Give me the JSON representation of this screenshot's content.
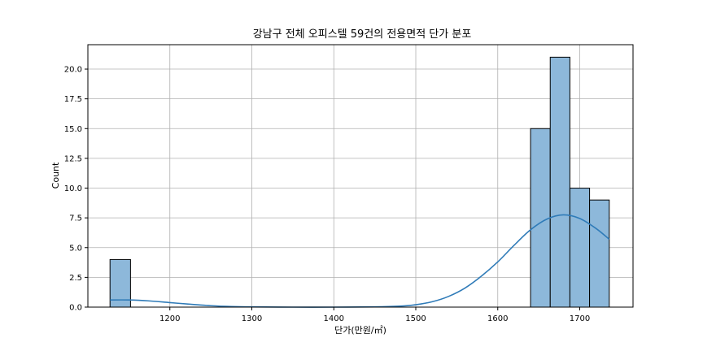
{
  "chart_data": {
    "type": "bar",
    "title": "강남구 전체 오피스텔 59건의 전용면적 단가 분포",
    "xlabel": "단가(만원/㎡)",
    "ylabel": "Count",
    "xlim": [
      1100,
      1765
    ],
    "ylim": [
      0,
      22.05
    ],
    "xticks": [
      1200,
      1300,
      1400,
      1500,
      1600,
      1700
    ],
    "yticks": [
      0.0,
      2.5,
      5.0,
      7.5,
      10.0,
      12.5,
      15.0,
      17.5,
      20.0
    ],
    "ytick_labels": [
      "0.0",
      "2.5",
      "5.0",
      "7.5",
      "10.0",
      "12.5",
      "15.0",
      "17.5",
      "20.0"
    ],
    "grid": true,
    "bins": [
      {
        "x0": 1127,
        "x1": 1152,
        "count": 4
      },
      {
        "x0": 1640,
        "x1": 1664,
        "count": 15
      },
      {
        "x0": 1664,
        "x1": 1688,
        "count": 21
      },
      {
        "x0": 1688,
        "x1": 1712,
        "count": 10
      },
      {
        "x0": 1712,
        "x1": 1736,
        "count": 9
      }
    ],
    "kde": {
      "x": [
        1127,
        1150,
        1175,
        1200,
        1225,
        1250,
        1275,
        1300,
        1350,
        1400,
        1450,
        1480,
        1500,
        1520,
        1540,
        1560,
        1580,
        1600,
        1620,
        1640,
        1660,
        1680,
        1700,
        1720,
        1736
      ],
      "y": [
        0.6,
        0.6,
        0.52,
        0.38,
        0.24,
        0.12,
        0.05,
        0.02,
        0.0,
        0.0,
        0.02,
        0.08,
        0.2,
        0.45,
        0.9,
        1.6,
        2.6,
        3.8,
        5.2,
        6.5,
        7.4,
        7.75,
        7.45,
        6.6,
        5.7
      ]
    },
    "colors": {
      "bar_fill": "#8db8da",
      "bar_edge": "#000000",
      "kde_line": "#2f7bb8",
      "grid": "#b0b0b0"
    }
  }
}
